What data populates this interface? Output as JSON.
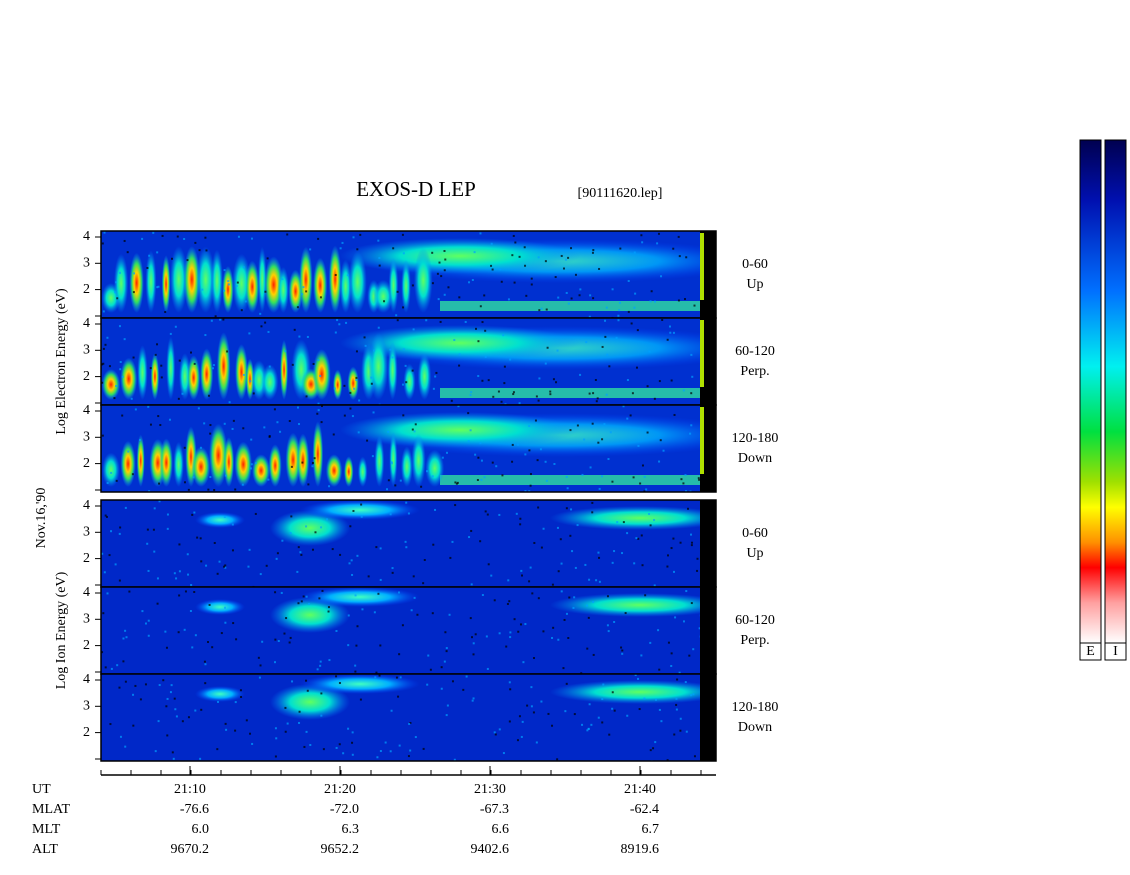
{
  "title": "EXOS-D LEP",
  "file_label": "[90111620.lep]",
  "date_label": "Nov.16,'90",
  "yticks": [
    2,
    3,
    4
  ],
  "groups": [
    {
      "ylabel": "Log Electron Energy (eV)",
      "panels": [
        {
          "angle": "0-60",
          "direction": "Up"
        },
        {
          "angle": "60-120",
          "direction": "Perp."
        },
        {
          "angle": "120-180",
          "direction": "Down"
        }
      ]
    },
    {
      "ylabel": "Log Ion Energy (eV)",
      "panels": [
        {
          "angle": "0-60",
          "direction": "Up"
        },
        {
          "angle": "60-120",
          "direction": "Perp."
        },
        {
          "angle": "120-180",
          "direction": "Down"
        }
      ]
    }
  ],
  "table": {
    "rows": [
      {
        "name": "UT",
        "values": [
          "21:10",
          "21:20",
          "21:30",
          "21:40"
        ]
      },
      {
        "name": "MLAT",
        "values": [
          "-76.6",
          "-72.0",
          "-67.3",
          "-62.4"
        ]
      },
      {
        "name": "MLT",
        "values": [
          "6.0",
          "6.3",
          "6.6",
          "6.7"
        ]
      },
      {
        "name": "ALT",
        "values": [
          "9670.2",
          "9652.2",
          "9402.6",
          "8919.6"
        ]
      }
    ]
  },
  "colorbar_labels": [
    "E",
    "I"
  ]
}
